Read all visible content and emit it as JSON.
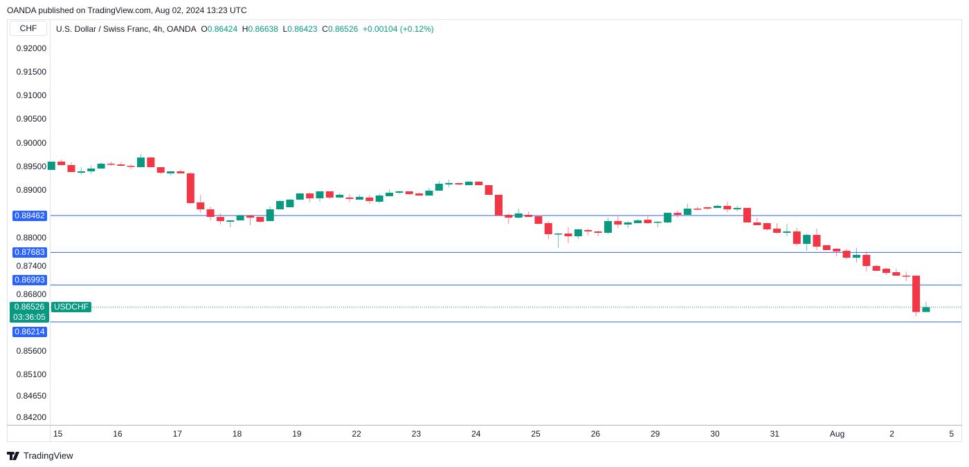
{
  "published": "OANDA published on TradingView.com, Aug 02, 2024 13:23 UTC",
  "currency_button": "CHF",
  "legend": {
    "title": "U.S. Dollar / Swiss Franc, 4h, OANDA",
    "o_label": "O",
    "o": "0.86424",
    "h_label": "H",
    "h": "0.86638",
    "l_label": "L",
    "l": "0.86423",
    "c_label": "C",
    "c": "0.86526",
    "change": "+0.00104 (+0.12%)"
  },
  "current": {
    "price": "0.86526",
    "countdown": "03:36:05",
    "symbol": "USDCHF",
    "value": 0.86526
  },
  "colors": {
    "up": "#089981",
    "down": "#f23645",
    "level": "#2962ff"
  },
  "footer_brand": "TradingView",
  "chart_data": {
    "type": "candlestick",
    "symbol": "USDCHF",
    "interval": "4h",
    "y_ticks": [
      "0.92000",
      "0.91500",
      "0.91000",
      "0.90500",
      "0.90000",
      "0.89500",
      "0.89000",
      "0.88000",
      "0.87400",
      "0.86800",
      "0.85600",
      "0.85100",
      "0.84650",
      "0.84200"
    ],
    "levels": [
      {
        "value": 0.88462,
        "label": "0.88462"
      },
      {
        "value": 0.87683,
        "label": "0.87683"
      },
      {
        "value": 0.86993,
        "label": "0.86993"
      },
      {
        "value": 0.86214,
        "label": "0.86214"
      }
    ],
    "x_labels": [
      "15",
      "16",
      "17",
      "18",
      "19",
      "22",
      "23",
      "24",
      "25",
      "26",
      "29",
      "30",
      "31",
      "Aug",
      "2",
      "5"
    ],
    "ohlc": [
      [
        0.89426,
        0.89601,
        0.89426,
        0.89601
      ],
      [
        0.89601,
        0.89645,
        0.89528,
        0.89528
      ],
      [
        0.89528,
        0.89586,
        0.89382,
        0.89382
      ],
      [
        0.89367,
        0.89484,
        0.89323,
        0.89396
      ],
      [
        0.89396,
        0.89528,
        0.89338,
        0.89455
      ],
      [
        0.89455,
        0.89586,
        0.89455,
        0.89557
      ],
      [
        0.89557,
        0.89601,
        0.89513,
        0.89542
      ],
      [
        0.89542,
        0.89586,
        0.89499,
        0.89513
      ],
      [
        0.89513,
        0.89542,
        0.8944,
        0.89499
      ],
      [
        0.89484,
        0.89761,
        0.89484,
        0.89688
      ],
      [
        0.89688,
        0.89703,
        0.89484,
        0.89484
      ],
      [
        0.89484,
        0.89484,
        0.89338,
        0.89367
      ],
      [
        0.89353,
        0.89396,
        0.89309,
        0.89396
      ],
      [
        0.89396,
        0.8944,
        0.89353,
        0.89353
      ],
      [
        0.89353,
        0.89382,
        0.8871,
        0.88725
      ],
      [
        0.88739,
        0.889,
        0.8852,
        0.88593
      ],
      [
        0.88593,
        0.88652,
        0.8836,
        0.88433
      ],
      [
        0.88433,
        0.88506,
        0.88272,
        0.88345
      ],
      [
        0.88331,
        0.88374,
        0.88214,
        0.8836
      ],
      [
        0.8836,
        0.88477,
        0.8836,
        0.88462
      ],
      [
        0.88462,
        0.88477,
        0.88258,
        0.88418
      ],
      [
        0.88433,
        0.88433,
        0.88316,
        0.88331
      ],
      [
        0.88345,
        0.88652,
        0.88345,
        0.88593
      ],
      [
        0.88593,
        0.88783,
        0.88593,
        0.88769
      ],
      [
        0.88637,
        0.88812,
        0.88637,
        0.88798
      ],
      [
        0.88798,
        0.88929,
        0.88798,
        0.88929
      ],
      [
        0.88929,
        0.88944,
        0.88739,
        0.88827
      ],
      [
        0.88827,
        0.88973,
        0.88754,
        0.88973
      ],
      [
        0.88973,
        0.88973,
        0.88812,
        0.88842
      ],
      [
        0.88842,
        0.88944,
        0.88842,
        0.889
      ],
      [
        0.88842,
        0.88915,
        0.88739,
        0.88812
      ],
      [
        0.88798,
        0.889,
        0.88798,
        0.88856
      ],
      [
        0.88842,
        0.889,
        0.8871,
        0.88769
      ],
      [
        0.88754,
        0.88929,
        0.88725,
        0.88885
      ],
      [
        0.88871,
        0.89017,
        0.88871,
        0.88944
      ],
      [
        0.88944,
        0.88988,
        0.88915,
        0.88973
      ],
      [
        0.88973,
        0.88973,
        0.889,
        0.88915
      ],
      [
        0.88929,
        0.88944,
        0.88885,
        0.88885
      ],
      [
        0.88885,
        0.89046,
        0.88885,
        0.88988
      ],
      [
        0.88988,
        0.89192,
        0.88988,
        0.89134
      ],
      [
        0.89119,
        0.89221,
        0.89061,
        0.89148
      ],
      [
        0.89148,
        0.89148,
        0.89104,
        0.89119
      ],
      [
        0.89104,
        0.89192,
        0.89104,
        0.89177
      ],
      [
        0.89177,
        0.89192,
        0.89104,
        0.89104
      ],
      [
        0.89104,
        0.89104,
        0.889,
        0.889
      ],
      [
        0.889,
        0.889,
        0.88462,
        0.88462
      ],
      [
        0.88477,
        0.88506,
        0.88287,
        0.88418
      ],
      [
        0.88418,
        0.88608,
        0.88404,
        0.88506
      ],
      [
        0.88477,
        0.8855,
        0.88433,
        0.88433
      ],
      [
        0.88447,
        0.88447,
        0.88272,
        0.88287
      ],
      [
        0.88301,
        0.88345,
        0.87966,
        0.88068
      ],
      [
        0.88068,
        0.88097,
        0.87776,
        0.88082
      ],
      [
        0.88082,
        0.88214,
        0.87878,
        0.88024
      ],
      [
        0.88024,
        0.88185,
        0.87966,
        0.8817
      ],
      [
        0.88155,
        0.88185,
        0.88039,
        0.88126
      ],
      [
        0.88126,
        0.88141,
        0.88024,
        0.88097
      ],
      [
        0.88097,
        0.88418,
        0.88068,
        0.88345
      ],
      [
        0.88345,
        0.88447,
        0.88199,
        0.88272
      ],
      [
        0.88272,
        0.88345,
        0.88199,
        0.88316
      ],
      [
        0.88301,
        0.88389,
        0.88301,
        0.8836
      ],
      [
        0.88374,
        0.88462,
        0.88287,
        0.88301
      ],
      [
        0.88316,
        0.88345,
        0.88214,
        0.88331
      ],
      [
        0.88316,
        0.8852,
        0.88301,
        0.8852
      ],
      [
        0.8852,
        0.88564,
        0.88418,
        0.88477
      ],
      [
        0.88477,
        0.8871,
        0.88477,
        0.88608
      ],
      [
        0.88608,
        0.88652,
        0.88579,
        0.88593
      ],
      [
        0.88637,
        0.88652,
        0.88579,
        0.88608
      ],
      [
        0.88623,
        0.88696,
        0.88623,
        0.88666
      ],
      [
        0.88666,
        0.88754,
        0.88535,
        0.88593
      ],
      [
        0.88593,
        0.88666,
        0.8855,
        0.88623
      ],
      [
        0.88623,
        0.88623,
        0.88316,
        0.88316
      ],
      [
        0.88316,
        0.88418,
        0.88258,
        0.88258
      ],
      [
        0.88301,
        0.88316,
        0.88141,
        0.8817
      ],
      [
        0.88185,
        0.88301,
        0.88082,
        0.88097
      ],
      [
        0.88097,
        0.88287,
        0.88024,
        0.88126
      ],
      [
        0.88126,
        0.88199,
        0.8782,
        0.87863
      ],
      [
        0.87863,
        0.88082,
        0.87717,
        0.88053
      ],
      [
        0.88053,
        0.88185,
        0.87732,
        0.87805
      ],
      [
        0.87834,
        0.87849,
        0.87732,
        0.87732
      ],
      [
        0.87761,
        0.87776,
        0.87601,
        0.87703
      ],
      [
        0.87717,
        0.87761,
        0.87542,
        0.87571
      ],
      [
        0.87571,
        0.87776,
        0.87469,
        0.8763
      ],
      [
        0.8763,
        0.87703,
        0.87279,
        0.87396
      ],
      [
        0.87396,
        0.87425,
        0.87294,
        0.87294
      ],
      [
        0.87338,
        0.87352,
        0.87206,
        0.8725
      ],
      [
        0.87265,
        0.87338,
        0.87192,
        0.87192
      ],
      [
        0.87192,
        0.87279,
        0.87075,
        0.87177
      ],
      [
        0.87192,
        0.87192,
        0.8633,
        0.86424
      ],
      [
        0.86424,
        0.86638,
        0.86423,
        0.86526
      ]
    ]
  }
}
